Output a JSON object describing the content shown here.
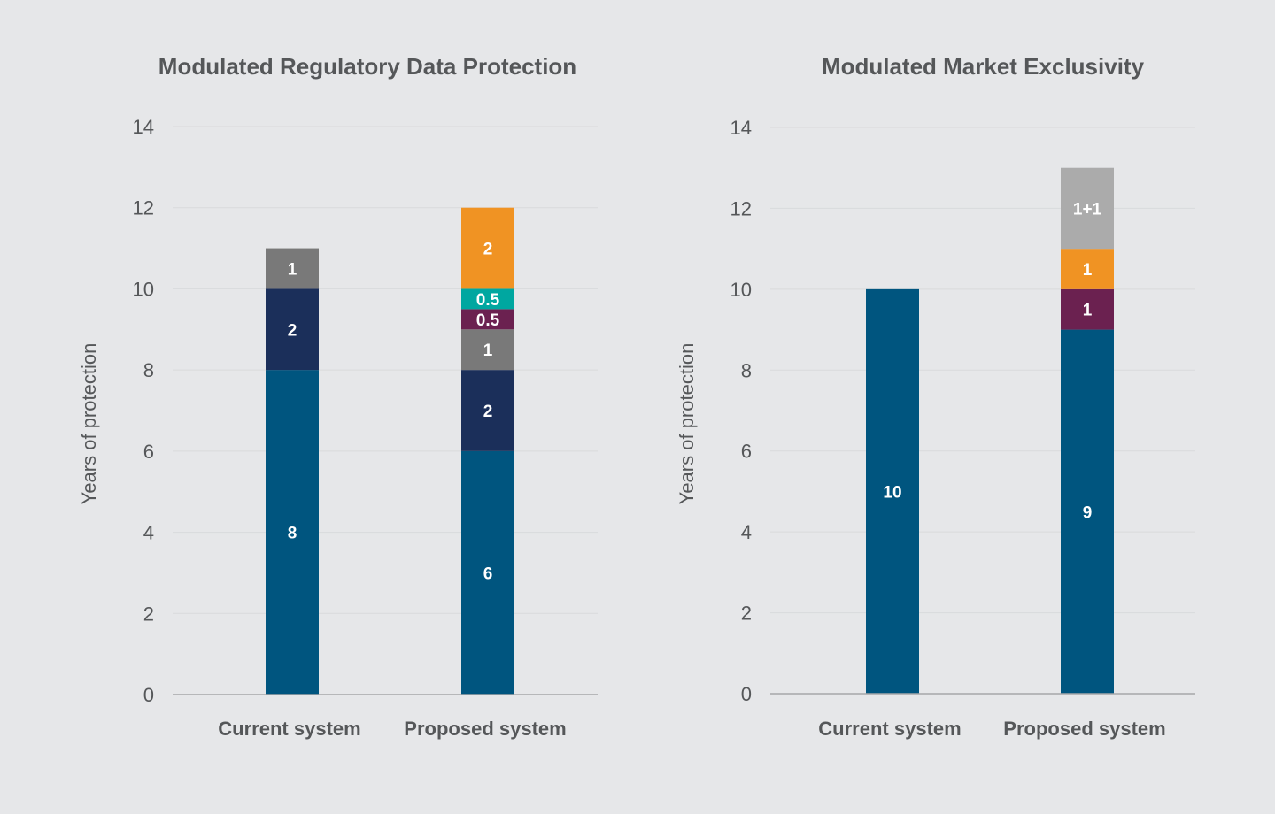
{
  "chart_data": [
    {
      "type": "bar",
      "stacked": true,
      "title": "Modulated Regulatory Data Protection",
      "xlabel": "",
      "ylabel": "Years of protection",
      "ylim": [
        0,
        14
      ],
      "yticks": [
        0,
        2,
        4,
        6,
        8,
        10,
        12,
        14
      ],
      "grid": true,
      "categories": [
        "Current system",
        "Proposed system"
      ],
      "stacks": [
        [
          {
            "value": 8,
            "label": "8",
            "color": "#00557f"
          },
          {
            "value": 2,
            "label": "2",
            "color": "#1b2f5a"
          },
          {
            "value": 1,
            "label": "1",
            "color": "#797979"
          }
        ],
        [
          {
            "value": 6,
            "label": "6",
            "color": "#00557f"
          },
          {
            "value": 2,
            "label": "2",
            "color": "#1b2f5a"
          },
          {
            "value": 1,
            "label": "1",
            "color": "#797979"
          },
          {
            "value": 0.5,
            "label": "0.5",
            "color": "#6b2150"
          },
          {
            "value": 0.5,
            "label": "0.5",
            "color": "#00a7a0"
          },
          {
            "value": 2,
            "label": "2",
            "color": "#f09323"
          }
        ]
      ]
    },
    {
      "type": "bar",
      "stacked": true,
      "title": "Modulated Market Exclusivity",
      "xlabel": "",
      "ylabel": "Years of protection",
      "ylim": [
        0,
        14
      ],
      "yticks": [
        0,
        2,
        4,
        6,
        8,
        10,
        12,
        14
      ],
      "grid": true,
      "categories": [
        "Current system",
        "Proposed system"
      ],
      "stacks": [
        [
          {
            "value": 10,
            "label": "10",
            "color": "#00557f"
          }
        ],
        [
          {
            "value": 9,
            "label": "9",
            "color": "#00557f"
          },
          {
            "value": 1,
            "label": "1",
            "color": "#6b2150"
          },
          {
            "value": 1,
            "label": "1",
            "color": "#f09323"
          },
          {
            "value": 2,
            "label": "1+1",
            "color": "#ababab"
          }
        ]
      ]
    }
  ]
}
